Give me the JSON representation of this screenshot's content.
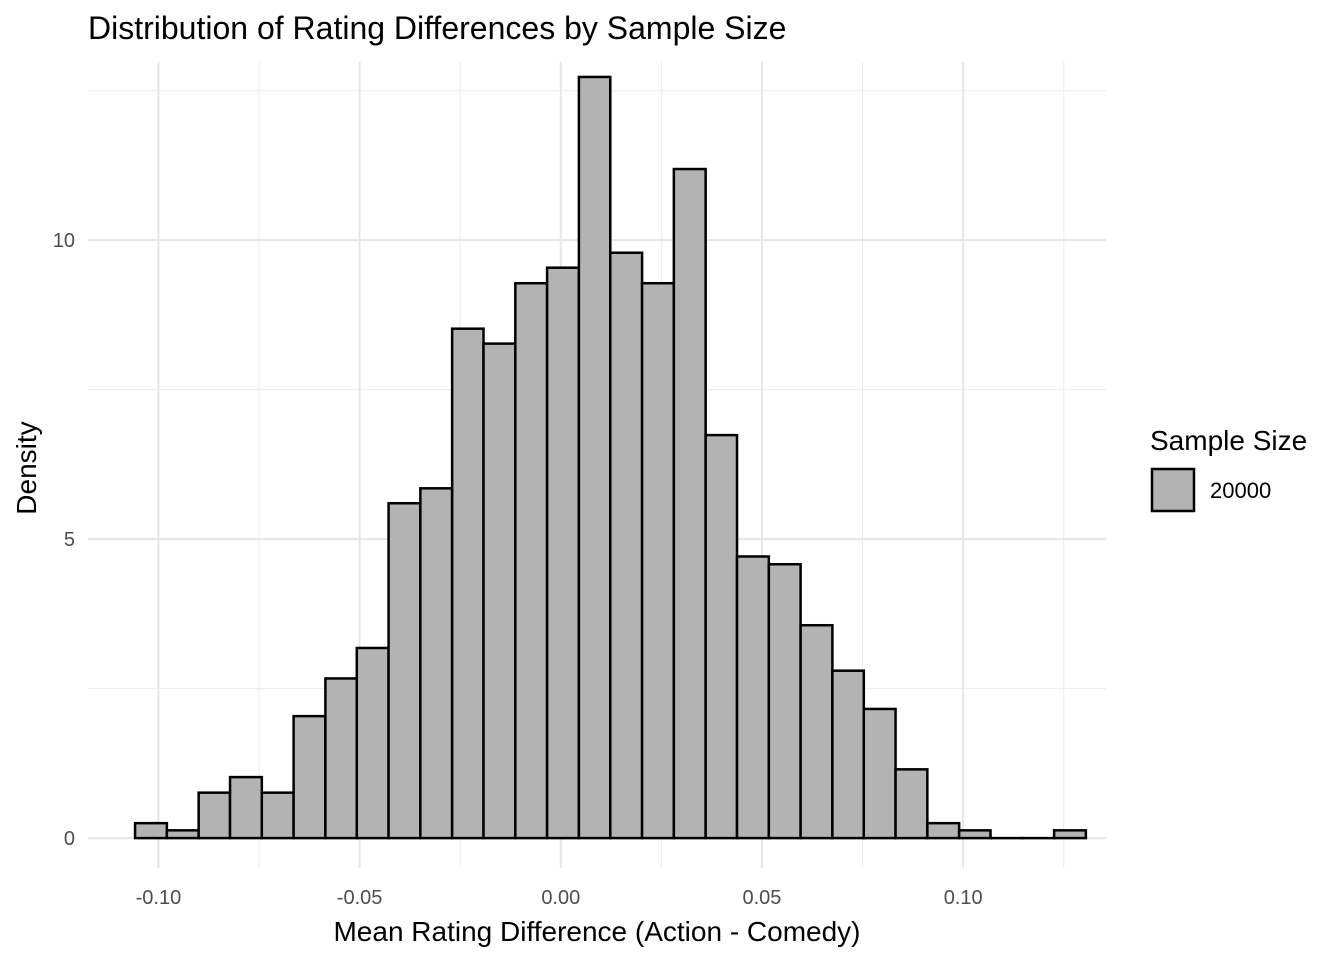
{
  "chart_data": {
    "type": "bar",
    "subtype": "histogram",
    "title": "Distribution of Rating Differences by Sample Size",
    "xlabel": "Mean Rating Difference (Action - Comedy)",
    "ylabel": "Density",
    "xlim": [
      -0.1175,
      0.1355
    ],
    "ylim": [
      -0.5,
      12.98
    ],
    "x_ticks": [
      -0.1,
      -0.05,
      0.0,
      0.05,
      0.1
    ],
    "x_tick_labels": [
      "-0.10",
      "-0.05",
      "0.00",
      "0.05",
      "0.10"
    ],
    "y_ticks": [
      0,
      5,
      10
    ],
    "y_tick_labels": [
      "0",
      "5",
      "10"
    ],
    "grid": true,
    "bin_width": 0.00787,
    "bin_edges": [
      -0.1058,
      -0.0979,
      -0.09,
      -0.0822,
      -0.0743,
      -0.0664,
      -0.0585,
      -0.0507,
      -0.0428,
      -0.0349,
      -0.027,
      -0.0192,
      -0.0113,
      -0.0034,
      0.0045,
      0.0123,
      0.0202,
      0.0281,
      0.036,
      0.0438,
      0.0517,
      0.0596,
      0.0675,
      0.0753,
      0.0832,
      0.0911,
      0.099,
      0.1068,
      0.1147,
      0.1226,
      0.1305
    ],
    "values": [
      0.25,
      0.13,
      0.76,
      1.02,
      0.76,
      2.04,
      2.67,
      3.18,
      5.6,
      5.85,
      8.52,
      8.27,
      9.28,
      9.54,
      12.73,
      9.79,
      9.28,
      11.19,
      6.74,
      4.71,
      4.58,
      3.56,
      2.8,
      2.16,
      1.15,
      0.25,
      0.13,
      0.0,
      0.0,
      0.13
    ],
    "series": [
      {
        "name": "20000",
        "fill": "#b3b3b3",
        "stroke": "#000000"
      }
    ],
    "legend": {
      "title": "Sample Size",
      "position": "right"
    },
    "colors": {
      "bar_fill": "#b3b3b3",
      "bar_stroke": "#000000",
      "grid": "#ebebeb",
      "tick_text": "#4d4d4d"
    }
  }
}
